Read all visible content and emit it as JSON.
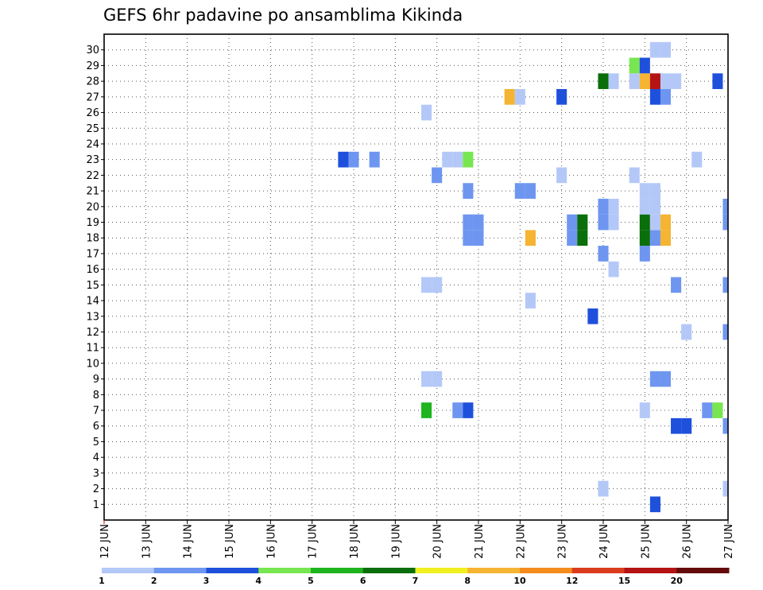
{
  "chart_data": {
    "type": "heatmap",
    "title": "GEFS 6hr padavine po ansamblima Kikinda",
    "xlabel": "",
    "ylabel": "",
    "x_tick_labels": [
      "12 JUN",
      "13 JUN",
      "14 JUN",
      "15 JUN",
      "16 JUN",
      "17 JUN",
      "18 JUN",
      "19 JUN",
      "20 JUN",
      "21 JUN",
      "22 JUN",
      "23 JUN",
      "24 JUN",
      "25 JUN",
      "26 JUN",
      "27 JUN"
    ],
    "y_tick_labels": [
      "1",
      "2",
      "3",
      "4",
      "5",
      "6",
      "7",
      "8",
      "9",
      "10",
      "11",
      "12",
      "13",
      "14",
      "15",
      "16",
      "17",
      "18",
      "19",
      "20",
      "21",
      "22",
      "23",
      "24",
      "25",
      "26",
      "27",
      "28",
      "29",
      "30"
    ],
    "xlim_days": [
      0,
      15
    ],
    "ylim": [
      0,
      31
    ],
    "grid": true,
    "grid_style": "dotted",
    "colorbar": {
      "labels": [
        "1",
        "2",
        "3",
        "4",
        "5",
        "6",
        "7",
        "8",
        "10",
        "12",
        "15",
        "20",
        ""
      ],
      "colors": [
        "#b4c8f8",
        "#6e96f0",
        "#1e50dc",
        "#78e650",
        "#1eb41e",
        "#0a6e0a",
        "#f0f020",
        "#f5b432",
        "#f58c1e",
        "#dc3c1e",
        "#b41414",
        "#640a0a"
      ],
      "position": "bottom"
    },
    "cells": [
      {
        "m": 1,
        "d": 13.25,
        "c": 3
      },
      {
        "m": 2,
        "d": 12.0,
        "c": 1
      },
      {
        "m": 2,
        "d": 15.0,
        "c": 1
      },
      {
        "m": 6,
        "d": 13.75,
        "c": 3
      },
      {
        "m": 6,
        "d": 14.0,
        "c": 3
      },
      {
        "m": 6,
        "d": 15.0,
        "c": 2
      },
      {
        "m": 7,
        "d": 7.75,
        "c": 5
      },
      {
        "m": 7,
        "d": 8.5,
        "c": 2
      },
      {
        "m": 7,
        "d": 8.75,
        "c": 3
      },
      {
        "m": 7,
        "d": 13.0,
        "c": 1
      },
      {
        "m": 7,
        "d": 14.5,
        "c": 2
      },
      {
        "m": 7,
        "d": 14.75,
        "c": 4
      },
      {
        "m": 9,
        "d": 7.75,
        "c": 1
      },
      {
        "m": 9,
        "d": 8.0,
        "c": 1
      },
      {
        "m": 9,
        "d": 13.25,
        "c": 2
      },
      {
        "m": 9,
        "d": 13.5,
        "c": 2
      },
      {
        "m": 12,
        "d": 14.0,
        "c": 1
      },
      {
        "m": 12,
        "d": 15.0,
        "c": 2
      },
      {
        "m": 13,
        "d": 11.75,
        "c": 3
      },
      {
        "m": 14,
        "d": 10.25,
        "c": 1
      },
      {
        "m": 15,
        "d": 7.75,
        "c": 1
      },
      {
        "m": 15,
        "d": 8.0,
        "c": 1
      },
      {
        "m": 15,
        "d": 13.75,
        "c": 2
      },
      {
        "m": 15,
        "d": 15.0,
        "c": 2
      },
      {
        "m": 16,
        "d": 12.25,
        "c": 1
      },
      {
        "m": 17,
        "d": 12.0,
        "c": 2
      },
      {
        "m": 17,
        "d": 13.0,
        "c": 2
      },
      {
        "m": 18,
        "d": 8.75,
        "c": 2
      },
      {
        "m": 18,
        "d": 9.0,
        "c": 2
      },
      {
        "m": 18,
        "d": 10.25,
        "c": 8
      },
      {
        "m": 18,
        "d": 11.25,
        "c": 2
      },
      {
        "m": 18,
        "d": 11.5,
        "c": 6
      },
      {
        "m": 18,
        "d": 13.0,
        "c": 6
      },
      {
        "m": 18,
        "d": 13.25,
        "c": 2
      },
      {
        "m": 18,
        "d": 13.5,
        "c": 8
      },
      {
        "m": 19,
        "d": 8.75,
        "c": 2
      },
      {
        "m": 19,
        "d": 9.0,
        "c": 2
      },
      {
        "m": 19,
        "d": 11.25,
        "c": 2
      },
      {
        "m": 19,
        "d": 11.5,
        "c": 6
      },
      {
        "m": 19,
        "d": 12.0,
        "c": 2
      },
      {
        "m": 19,
        "d": 12.25,
        "c": 1
      },
      {
        "m": 19,
        "d": 13.0,
        "c": 6
      },
      {
        "m": 19,
        "d": 13.25,
        "c": 1
      },
      {
        "m": 19,
        "d": 13.5,
        "c": 8
      },
      {
        "m": 19,
        "d": 15.0,
        "c": 2
      },
      {
        "m": 20,
        "d": 12.0,
        "c": 2
      },
      {
        "m": 20,
        "d": 12.25,
        "c": 1
      },
      {
        "m": 20,
        "d": 13.0,
        "c": 1
      },
      {
        "m": 20,
        "d": 13.25,
        "c": 1
      },
      {
        "m": 20,
        "d": 15.0,
        "c": 2
      },
      {
        "m": 21,
        "d": 8.75,
        "c": 2
      },
      {
        "m": 21,
        "d": 10.0,
        "c": 2
      },
      {
        "m": 21,
        "d": 10.25,
        "c": 2
      },
      {
        "m": 21,
        "d": 13.0,
        "c": 1
      },
      {
        "m": 21,
        "d": 13.25,
        "c": 1
      },
      {
        "m": 22,
        "d": 8.0,
        "c": 2
      },
      {
        "m": 22,
        "d": 11.0,
        "c": 1
      },
      {
        "m": 22,
        "d": 12.75,
        "c": 1
      },
      {
        "m": 23,
        "d": 5.75,
        "c": 3
      },
      {
        "m": 23,
        "d": 6.0,
        "c": 2
      },
      {
        "m": 23,
        "d": 6.5,
        "c": 2
      },
      {
        "m": 23,
        "d": 8.25,
        "c": 1
      },
      {
        "m": 23,
        "d": 8.5,
        "c": 1
      },
      {
        "m": 23,
        "d": 8.75,
        "c": 4
      },
      {
        "m": 23,
        "d": 14.25,
        "c": 1
      },
      {
        "m": 26,
        "d": 7.75,
        "c": 1
      },
      {
        "m": 27,
        "d": 9.75,
        "c": 8
      },
      {
        "m": 27,
        "d": 10.0,
        "c": 1
      },
      {
        "m": 27,
        "d": 11.0,
        "c": 3
      },
      {
        "m": 27,
        "d": 13.25,
        "c": 3
      },
      {
        "m": 27,
        "d": 13.5,
        "c": 2
      },
      {
        "m": 28,
        "d": 12.0,
        "c": 6
      },
      {
        "m": 28,
        "d": 12.25,
        "c": 1
      },
      {
        "m": 28,
        "d": 12.75,
        "c": 1
      },
      {
        "m": 28,
        "d": 13.0,
        "c": 8
      },
      {
        "m": 28,
        "d": 13.25,
        "c": 11
      },
      {
        "m": 28,
        "d": 13.5,
        "c": 1
      },
      {
        "m": 28,
        "d": 13.75,
        "c": 1
      },
      {
        "m": 28,
        "d": 14.75,
        "c": 3
      },
      {
        "m": 29,
        "d": 12.75,
        "c": 4
      },
      {
        "m": 29,
        "d": 13.0,
        "c": 3
      },
      {
        "m": 30,
        "d": 13.25,
        "c": 1
      },
      {
        "m": 30,
        "d": 13.5,
        "c": 1
      }
    ]
  }
}
